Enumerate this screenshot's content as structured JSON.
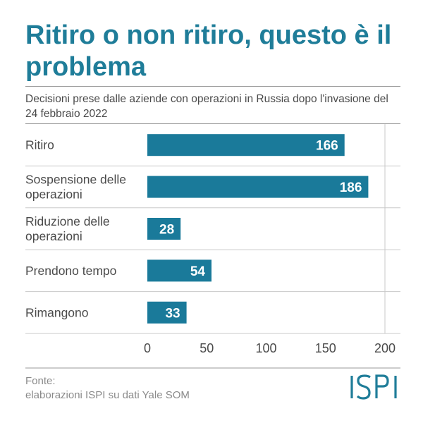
{
  "header": {
    "title": "Ritiro o non ritiro, questo è il problema",
    "subtitle": "Decisioni prese dalle aziende con operazioni in Russia dopo l'invasione del 24 febbraio 2022"
  },
  "source": {
    "line1": "Fonte:",
    "line2": "elaborazioni ISPI su dati Yale SOM"
  },
  "logo": {
    "text": "ISPI"
  },
  "colors": {
    "accent": "#1f7d99",
    "bar": "#1a7a9a",
    "grid": "#c8c8c8",
    "text": "#4a4a4a"
  },
  "chart_data": {
    "type": "bar",
    "orientation": "horizontal",
    "categories": [
      [
        "Ritiro"
      ],
      [
        "Sospensione delle",
        "operazioni"
      ],
      [
        "Riduzione delle",
        "operazioni"
      ],
      [
        "Prendono tempo"
      ],
      [
        "Rimangono"
      ]
    ],
    "values": [
      166,
      186,
      28,
      54,
      33
    ],
    "xlim": [
      0,
      200
    ],
    "xticks": [
      0,
      50,
      100,
      150,
      200
    ],
    "grid": "horizontal separators between categories, vertical lines at 200",
    "data_labels": true
  }
}
